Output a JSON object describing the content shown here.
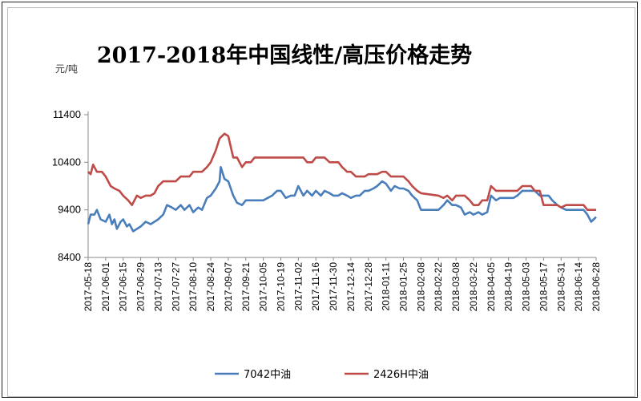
{
  "chart_data": {
    "type": "line",
    "title": "2017-2018年中国线性/高压价格走势",
    "unit_label": "元/吨",
    "ylim": [
      8400,
      11400
    ],
    "yticks": [
      8400,
      9400,
      10400,
      11400
    ],
    "x_start": "2017-05-18",
    "x_end": "2018-06-28",
    "xtick_labels": [
      "2017-05-18",
      "2017-06-01",
      "2017-06-15",
      "2017-06-29",
      "2017-07-13",
      "2017-07-27",
      "2017-08-10",
      "2017-08-24",
      "2017-09-07",
      "2017-09-21",
      "2017-10-05",
      "2017-10-19",
      "2017-11-02",
      "2017-11-16",
      "2017-11-30",
      "2017-12-14",
      "2017-12-28",
      "2018-01-11",
      "2018-01-25",
      "2018-02-08",
      "2018-02-22",
      "2018-03-08",
      "2018-03-22",
      "2018-04-05",
      "2018-04-19",
      "2018-05-03",
      "2018-05-17",
      "2018-05-31",
      "2018-06-14",
      "2018-06-28"
    ],
    "grid": false,
    "legend_position": "bottom",
    "series": [
      {
        "name": "7042中油",
        "color": "#4a7ebb",
        "points": [
          [
            "2017-05-18",
            9100
          ],
          [
            "2017-05-20",
            9300
          ],
          [
            "2017-05-23",
            9300
          ],
          [
            "2017-05-25",
            9400
          ],
          [
            "2017-05-28",
            9200
          ],
          [
            "2017-06-01",
            9150
          ],
          [
            "2017-06-04",
            9300
          ],
          [
            "2017-06-06",
            9100
          ],
          [
            "2017-06-08",
            9200
          ],
          [
            "2017-06-10",
            9000
          ],
          [
            "2017-06-13",
            9150
          ],
          [
            "2017-06-15",
            9200
          ],
          [
            "2017-06-18",
            9050
          ],
          [
            "2017-06-20",
            9100
          ],
          [
            "2017-06-23",
            8950
          ],
          [
            "2017-06-26",
            9000
          ],
          [
            "2017-06-29",
            9050
          ],
          [
            "2017-07-03",
            9150
          ],
          [
            "2017-07-07",
            9100
          ],
          [
            "2017-07-10",
            9150
          ],
          [
            "2017-07-13",
            9200
          ],
          [
            "2017-07-17",
            9300
          ],
          [
            "2017-07-20",
            9500
          ],
          [
            "2017-07-24",
            9450
          ],
          [
            "2017-07-27",
            9400
          ],
          [
            "2017-07-31",
            9500
          ],
          [
            "2017-08-03",
            9400
          ],
          [
            "2017-08-07",
            9500
          ],
          [
            "2017-08-10",
            9350
          ],
          [
            "2017-08-14",
            9450
          ],
          [
            "2017-08-17",
            9400
          ],
          [
            "2017-08-21",
            9650
          ],
          [
            "2017-08-24",
            9700
          ],
          [
            "2017-08-28",
            9850
          ],
          [
            "2017-08-31",
            10000
          ],
          [
            "2017-09-01",
            10300
          ],
          [
            "2017-09-04",
            10050
          ],
          [
            "2017-09-07",
            10000
          ],
          [
            "2017-09-11",
            9700
          ],
          [
            "2017-09-14",
            9550
          ],
          [
            "2017-09-18",
            9500
          ],
          [
            "2017-09-21",
            9600
          ],
          [
            "2017-09-25",
            9600
          ],
          [
            "2017-10-05",
            9600
          ],
          [
            "2017-10-12",
            9700
          ],
          [
            "2017-10-16",
            9800
          ],
          [
            "2017-10-19",
            9800
          ],
          [
            "2017-10-23",
            9650
          ],
          [
            "2017-10-27",
            9700
          ],
          [
            "2017-10-30",
            9700
          ],
          [
            "2017-11-02",
            9900
          ],
          [
            "2017-11-06",
            9700
          ],
          [
            "2017-11-09",
            9800
          ],
          [
            "2017-11-13",
            9700
          ],
          [
            "2017-11-16",
            9800
          ],
          [
            "2017-11-20",
            9700
          ],
          [
            "2017-11-23",
            9800
          ],
          [
            "2017-11-27",
            9750
          ],
          [
            "2017-11-30",
            9700
          ],
          [
            "2017-12-04",
            9700
          ],
          [
            "2017-12-07",
            9750
          ],
          [
            "2017-12-11",
            9700
          ],
          [
            "2017-12-14",
            9650
          ],
          [
            "2017-12-18",
            9700
          ],
          [
            "2017-12-21",
            9700
          ],
          [
            "2017-12-25",
            9800
          ],
          [
            "2017-12-28",
            9800
          ],
          [
            "2018-01-01",
            9850
          ],
          [
            "2018-01-04",
            9900
          ],
          [
            "2018-01-08",
            10000
          ],
          [
            "2018-01-11",
            9950
          ],
          [
            "2018-01-15",
            9800
          ],
          [
            "2018-01-18",
            9900
          ],
          [
            "2018-01-22",
            9850
          ],
          [
            "2018-01-25",
            9850
          ],
          [
            "2018-01-29",
            9800
          ],
          [
            "2018-02-01",
            9700
          ],
          [
            "2018-02-05",
            9600
          ],
          [
            "2018-02-08",
            9400
          ],
          [
            "2018-02-12",
            9400
          ],
          [
            "2018-02-22",
            9400
          ],
          [
            "2018-02-26",
            9500
          ],
          [
            "2018-03-01",
            9600
          ],
          [
            "2018-03-05",
            9500
          ],
          [
            "2018-03-08",
            9500
          ],
          [
            "2018-03-12",
            9450
          ],
          [
            "2018-03-15",
            9300
          ],
          [
            "2018-03-19",
            9350
          ],
          [
            "2018-03-22",
            9300
          ],
          [
            "2018-03-26",
            9350
          ],
          [
            "2018-03-29",
            9300
          ],
          [
            "2018-04-02",
            9350
          ],
          [
            "2018-04-05",
            9700
          ],
          [
            "2018-04-09",
            9600
          ],
          [
            "2018-04-12",
            9650
          ],
          [
            "2018-04-16",
            9650
          ],
          [
            "2018-04-19",
            9650
          ],
          [
            "2018-04-23",
            9650
          ],
          [
            "2018-04-26",
            9700
          ],
          [
            "2018-04-30",
            9800
          ],
          [
            "2018-05-03",
            9800
          ],
          [
            "2018-05-07",
            9800
          ],
          [
            "2018-05-10",
            9800
          ],
          [
            "2018-05-14",
            9700
          ],
          [
            "2018-05-17",
            9700
          ],
          [
            "2018-05-21",
            9700
          ],
          [
            "2018-05-24",
            9600
          ],
          [
            "2018-05-28",
            9500
          ],
          [
            "2018-05-31",
            9450
          ],
          [
            "2018-06-04",
            9400
          ],
          [
            "2018-06-07",
            9400
          ],
          [
            "2018-06-11",
            9400
          ],
          [
            "2018-06-14",
            9400
          ],
          [
            "2018-06-18",
            9400
          ],
          [
            "2018-06-21",
            9300
          ],
          [
            "2018-06-24",
            9150
          ],
          [
            "2018-06-28",
            9250
          ]
        ]
      },
      {
        "name": "2426H中油",
        "color": "#be4b48",
        "points": [
          [
            "2017-05-18",
            10200
          ],
          [
            "2017-05-20",
            10150
          ],
          [
            "2017-05-22",
            10350
          ],
          [
            "2017-05-25",
            10200
          ],
          [
            "2017-05-29",
            10200
          ],
          [
            "2017-06-01",
            10100
          ],
          [
            "2017-06-05",
            9900
          ],
          [
            "2017-06-08",
            9850
          ],
          [
            "2017-06-12",
            9800
          ],
          [
            "2017-06-15",
            9700
          ],
          [
            "2017-06-19",
            9600
          ],
          [
            "2017-06-22",
            9500
          ],
          [
            "2017-06-26",
            9700
          ],
          [
            "2017-06-29",
            9650
          ],
          [
            "2017-07-03",
            9700
          ],
          [
            "2017-07-07",
            9700
          ],
          [
            "2017-07-10",
            9750
          ],
          [
            "2017-07-13",
            9900
          ],
          [
            "2017-07-17",
            10000
          ],
          [
            "2017-07-20",
            10000
          ],
          [
            "2017-07-27",
            10000
          ],
          [
            "2017-07-31",
            10100
          ],
          [
            "2017-08-07",
            10100
          ],
          [
            "2017-08-10",
            10200
          ],
          [
            "2017-08-17",
            10200
          ],
          [
            "2017-08-21",
            10300
          ],
          [
            "2017-08-24",
            10400
          ],
          [
            "2017-08-28",
            10650
          ],
          [
            "2017-08-31",
            10900
          ],
          [
            "2017-09-04",
            11000
          ],
          [
            "2017-09-07",
            10950
          ],
          [
            "2017-09-11",
            10500
          ],
          [
            "2017-09-14",
            10500
          ],
          [
            "2017-09-18",
            10300
          ],
          [
            "2017-09-21",
            10400
          ],
          [
            "2017-09-25",
            10400
          ],
          [
            "2017-09-28",
            10500
          ],
          [
            "2017-10-05",
            10500
          ],
          [
            "2017-10-19",
            10500
          ],
          [
            "2017-10-26",
            10500
          ],
          [
            "2017-11-02",
            10500
          ],
          [
            "2017-11-06",
            10500
          ],
          [
            "2017-11-09",
            10400
          ],
          [
            "2017-11-13",
            10400
          ],
          [
            "2017-11-16",
            10500
          ],
          [
            "2017-11-20",
            10500
          ],
          [
            "2017-11-23",
            10500
          ],
          [
            "2017-11-27",
            10400
          ],
          [
            "2017-11-30",
            10400
          ],
          [
            "2017-12-04",
            10400
          ],
          [
            "2017-12-07",
            10300
          ],
          [
            "2017-12-11",
            10200
          ],
          [
            "2017-12-14",
            10200
          ],
          [
            "2017-12-18",
            10100
          ],
          [
            "2017-12-21",
            10100
          ],
          [
            "2017-12-25",
            10100
          ],
          [
            "2017-12-28",
            10150
          ],
          [
            "2018-01-04",
            10150
          ],
          [
            "2018-01-08",
            10200
          ],
          [
            "2018-01-11",
            10200
          ],
          [
            "2018-01-15",
            10100
          ],
          [
            "2018-01-18",
            10100
          ],
          [
            "2018-01-25",
            10100
          ],
          [
            "2018-01-29",
            10000
          ],
          [
            "2018-02-01",
            9900
          ],
          [
            "2018-02-05",
            9800
          ],
          [
            "2018-02-08",
            9750
          ],
          [
            "2018-02-22",
            9700
          ],
          [
            "2018-02-26",
            9650
          ],
          [
            "2018-03-01",
            9700
          ],
          [
            "2018-03-05",
            9600
          ],
          [
            "2018-03-08",
            9700
          ],
          [
            "2018-03-15",
            9700
          ],
          [
            "2018-03-19",
            9600
          ],
          [
            "2018-03-22",
            9500
          ],
          [
            "2018-03-26",
            9500
          ],
          [
            "2018-03-29",
            9600
          ],
          [
            "2018-04-02",
            9600
          ],
          [
            "2018-04-05",
            9900
          ],
          [
            "2018-04-09",
            9800
          ],
          [
            "2018-04-12",
            9800
          ],
          [
            "2018-04-19",
            9800
          ],
          [
            "2018-04-26",
            9800
          ],
          [
            "2018-04-30",
            9900
          ],
          [
            "2018-05-03",
            9900
          ],
          [
            "2018-05-07",
            9900
          ],
          [
            "2018-05-10",
            9800
          ],
          [
            "2018-05-14",
            9800
          ],
          [
            "2018-05-17",
            9500
          ],
          [
            "2018-05-21",
            9500
          ],
          [
            "2018-05-24",
            9500
          ],
          [
            "2018-05-28",
            9500
          ],
          [
            "2018-05-31",
            9450
          ],
          [
            "2018-06-04",
            9500
          ],
          [
            "2018-06-07",
            9500
          ],
          [
            "2018-06-11",
            9500
          ],
          [
            "2018-06-14",
            9500
          ],
          [
            "2018-06-18",
            9500
          ],
          [
            "2018-06-21",
            9400
          ],
          [
            "2018-06-28",
            9400
          ]
        ]
      }
    ]
  }
}
